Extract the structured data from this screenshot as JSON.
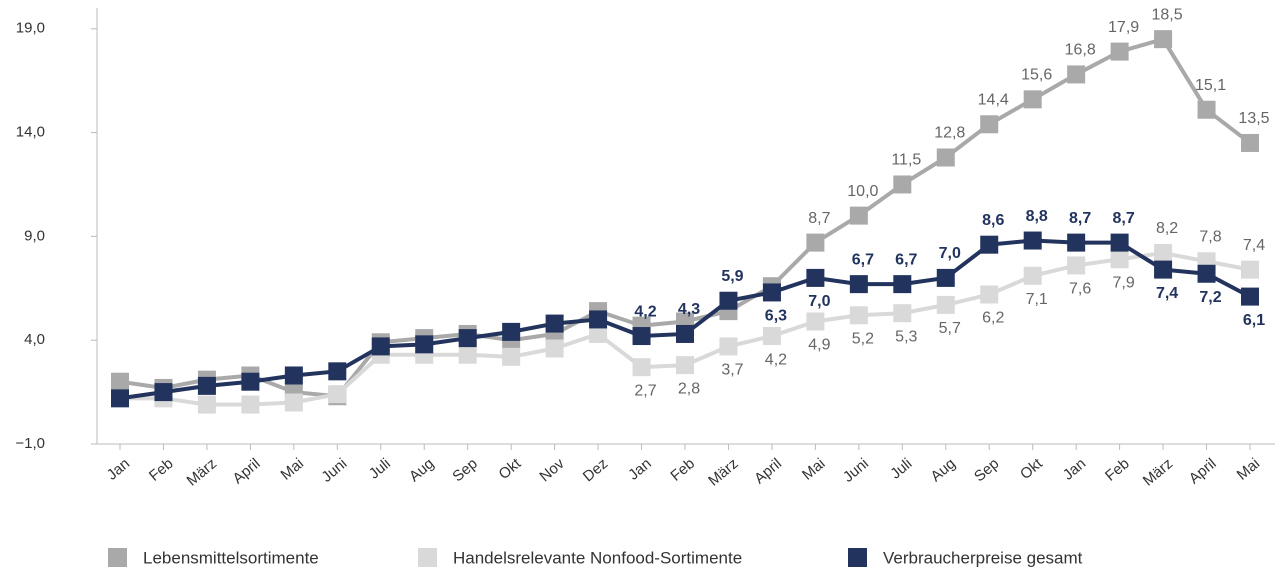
{
  "chart_data": {
    "type": "line",
    "categories": [
      "Jan",
      "Feb",
      "März",
      "April",
      "Mai",
      "Juni",
      "Juli",
      "Aug",
      "Sep",
      "Okt",
      "Nov",
      "Dez",
      "Jan",
      "Feb",
      "März",
      "April",
      "Mai",
      "Juni",
      "Juli",
      "Aug",
      "Sep",
      "Okt",
      "Jan",
      "Feb",
      "März",
      "April",
      "Mai"
    ],
    "ylim": [
      -1,
      20
    ],
    "yticks": [
      {
        "value": -1,
        "label": "−1,0"
      },
      {
        "value": 4,
        "label": "4,0"
      },
      {
        "value": 9,
        "label": "9,0"
      },
      {
        "value": 14,
        "label": "14,0"
      },
      {
        "value": 19,
        "label": "19,0"
      }
    ],
    "grid": false,
    "legend": "bottom",
    "series": [
      {
        "name": "Lebensmittelsortimente",
        "color": "#a9a9a9",
        "values": [
          2.0,
          1.7,
          2.1,
          2.3,
          1.5,
          1.3,
          3.9,
          4.1,
          4.3,
          4.0,
          4.3,
          5.4,
          4.7,
          4.9,
          5.4,
          6.6,
          8.7,
          10.0,
          11.5,
          12.8,
          14.4,
          15.6,
          16.8,
          17.9,
          18.5,
          15.1,
          13.5
        ],
        "value_labels": [
          null,
          null,
          null,
          null,
          null,
          null,
          null,
          null,
          null,
          null,
          null,
          null,
          null,
          null,
          null,
          null,
          "8,7",
          "10,0",
          "11,5",
          "12,8",
          "14,4",
          "15,6",
          "16,8",
          "17,9",
          "18,5",
          "15,1",
          "13,5"
        ]
      },
      {
        "name": "Handelsrelevante Nonfood-Sortimente",
        "color": "#d9d9d9",
        "values": [
          1.2,
          1.2,
          0.9,
          0.9,
          1.0,
          1.4,
          3.3,
          3.3,
          3.3,
          3.2,
          3.6,
          4.3,
          2.7,
          2.8,
          3.7,
          4.2,
          4.9,
          5.2,
          5.3,
          5.7,
          6.2,
          7.1,
          7.6,
          7.9,
          8.2,
          7.8,
          7.4
        ],
        "value_labels": [
          null,
          null,
          null,
          null,
          null,
          null,
          null,
          null,
          null,
          null,
          null,
          null,
          "2,7",
          "2,8",
          "3,7",
          "4,2",
          "4,9",
          "5,2",
          "5,3",
          "5,7",
          "6,2",
          "7,1",
          "7,6",
          "7,9",
          "8,2",
          "7,8",
          "7,4"
        ]
      },
      {
        "name": "Verbraucherpreise gesamt",
        "color": "#22335e",
        "values": [
          1.2,
          1.5,
          1.8,
          2.0,
          2.3,
          2.5,
          3.7,
          3.8,
          4.1,
          4.4,
          4.8,
          5.0,
          4.2,
          4.3,
          5.9,
          6.3,
          7.0,
          6.7,
          6.7,
          7.0,
          8.6,
          8.8,
          8.7,
          8.7,
          7.4,
          7.2,
          6.1
        ],
        "value_labels": [
          null,
          null,
          null,
          null,
          null,
          null,
          null,
          null,
          null,
          null,
          null,
          null,
          "4,2",
          "4,3",
          "5,9",
          "6,3",
          "7,0",
          "6,7",
          "6,7",
          "7,0",
          "8,6",
          "8,8",
          "8,7",
          "8,7",
          "7,4",
          "7,2",
          "6,1"
        ]
      }
    ]
  }
}
